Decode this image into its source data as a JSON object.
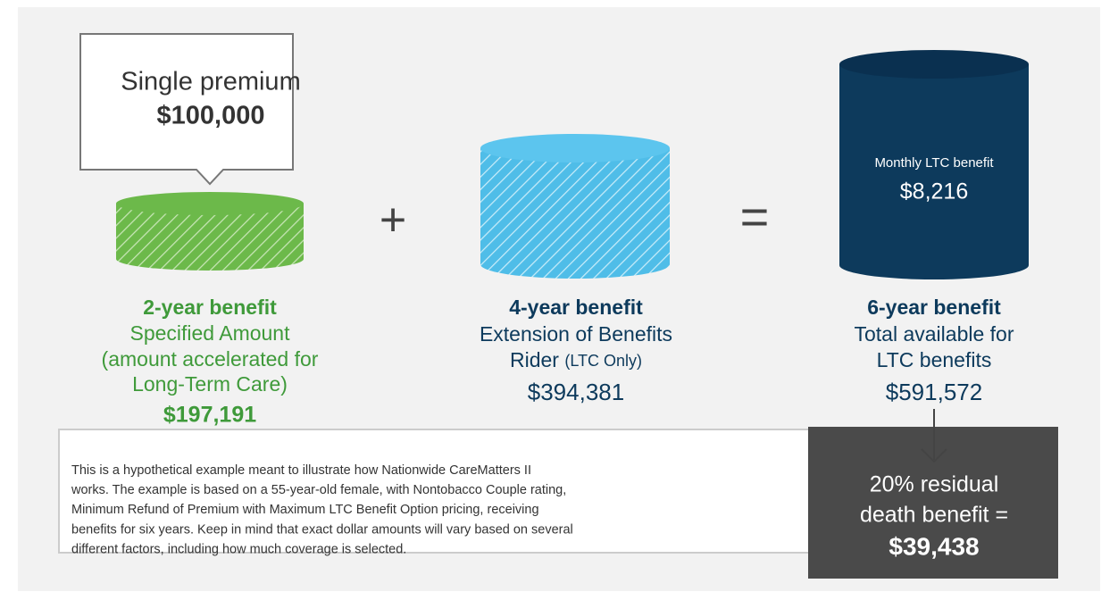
{
  "callout": {
    "label": "Single premium",
    "amount": "$100,000"
  },
  "operators": {
    "plus": "+",
    "equals": "="
  },
  "columns": [
    {
      "cylinder_label": null,
      "cylinder_amount": null,
      "heading": "2-year benefit",
      "lines": [
        "Specified Amount",
        "(amount accelerated for",
        "Long-Term Care)"
      ],
      "amount": "$197,191"
    },
    {
      "cylinder_label": null,
      "cylinder_amount": null,
      "heading": "4-year benefit",
      "lines": [
        "Extension of Benefits"
      ],
      "line_main": "Rider",
      "line_note": "(LTC Only)",
      "amount": "$394,381"
    },
    {
      "cylinder_label": "Monthly LTC benefit",
      "cylinder_amount": "$8,216",
      "heading": "6-year benefit",
      "lines": [
        "Total available for",
        "LTC benefits"
      ],
      "amount": "$591,572"
    }
  ],
  "disclaimer": [
    "This is a hypothetical example meant to illustrate how Nationwide CareMatters II",
    "works. The example is based on a 55-year-old female, with Nontobacco Couple rating,",
    "Minimum Refund of Premium with Maximum LTC Benefit Option pricing, receiving",
    "benefits for six years. Keep in mind that exact dollar amounts will vary based on several",
    "different factors, including how much coverage is selected."
  ],
  "residual": {
    "lines": [
      "20% residual",
      "death benefit ="
    ],
    "amount": "$39,438"
  }
}
